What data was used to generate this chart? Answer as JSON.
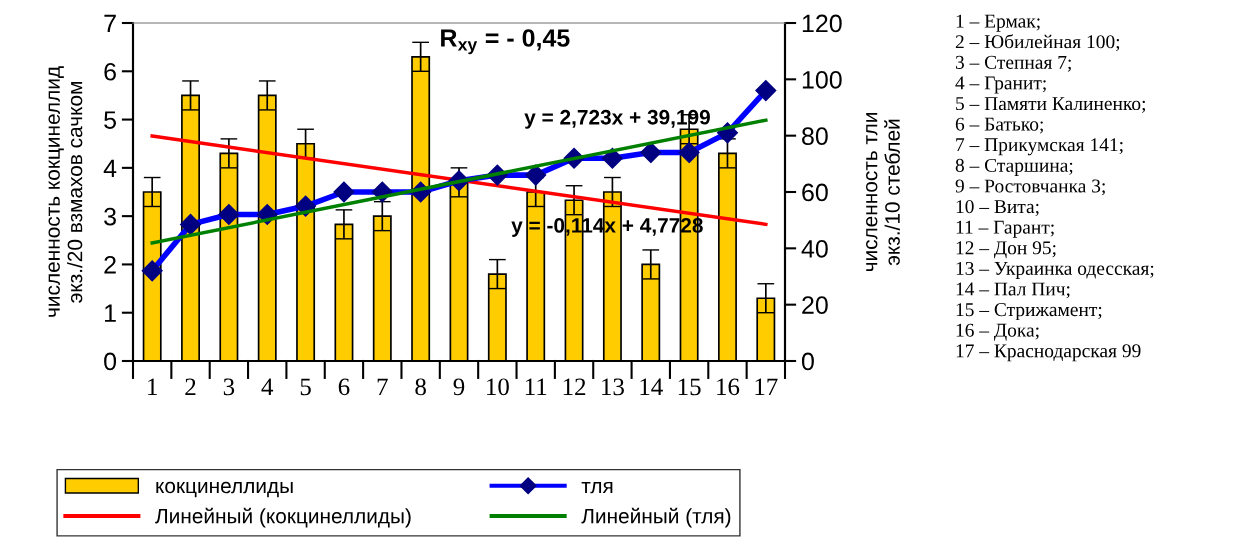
{
  "chart_data": {
    "type": "bar",
    "categories": [
      "1",
      "2",
      "3",
      "4",
      "5",
      "6",
      "7",
      "8",
      "9",
      "10",
      "11",
      "12",
      "13",
      "14",
      "15",
      "16",
      "17"
    ],
    "ylabel": "численность кокцинеллид\nэкз./20 взмахов сачком",
    "y2label": "численность тли\nэкз./10 стеблей",
    "ylim": [
      0,
      7
    ],
    "yticks": [
      0,
      1,
      2,
      3,
      4,
      5,
      6,
      7
    ],
    "y2lim": [
      0,
      120
    ],
    "y2ticks": [
      0,
      20,
      40,
      60,
      80,
      100,
      120
    ],
    "series": [
      {
        "name": "кокцинеллиды",
        "color": "#ffcc00",
        "values": [
          3.5,
          5.5,
          4.3,
          5.5,
          4.5,
          2.83,
          3.0,
          6.3,
          3.7,
          1.8,
          3.5,
          3.33,
          3.5,
          2.0,
          4.8,
          4.3,
          1.3
        ],
        "errors": [
          0.3,
          0.3,
          0.3,
          0.3,
          0.3,
          0.3,
          0.3,
          0.3,
          0.3,
          0.3,
          0.3,
          0.3,
          0.3,
          0.3,
          0.3,
          0.3,
          0.3
        ]
      },
      {
        "name": "тля",
        "type": "line",
        "axis": "y2",
        "color": "#0000ff",
        "marker": "diamond",
        "values": [
          32,
          48.5,
          52,
          52,
          55,
          60,
          60,
          60,
          64,
          66,
          66,
          72,
          72,
          74,
          74,
          81,
          96
        ]
      },
      {
        "name": "Линейный (кокцинеллиды)",
        "type": "line",
        "color": "#ff0000",
        "x": [
          "1",
          "17"
        ],
        "values": [
          4.66,
          2.83
        ]
      },
      {
        "name": "Линейный (тля)",
        "type": "line",
        "axis": "y2",
        "color": "#008000",
        "x": [
          "1",
          "17"
        ],
        "values": [
          41.9,
          85.5
        ]
      }
    ],
    "annotations": [
      "R$_{xy}$ = - 0,45",
      "y = 2,723x + 39,199",
      "y = -0,114x + 4,7728",
      "1 – Ермак;\n2 – Юбилейная 100;\n3 – Степная 7;\n4 – Гранит;\n5 – Памяти Калиненко;\n6 – Батько;\n7 – Прикумская 141;\n8 – Старшина;\n9 – Ростовчанка 3;\n10 – Вита;\n11 – Гарант;\n12 – Дон 95;\n13 – Украинка одесская;\n14 – Пал Пич;\n15 – Стрижамент;\n16 – Дока;\n17 – Краснодарская 99"
    ],
    "legend": "bottom",
    "grid": false
  }
}
